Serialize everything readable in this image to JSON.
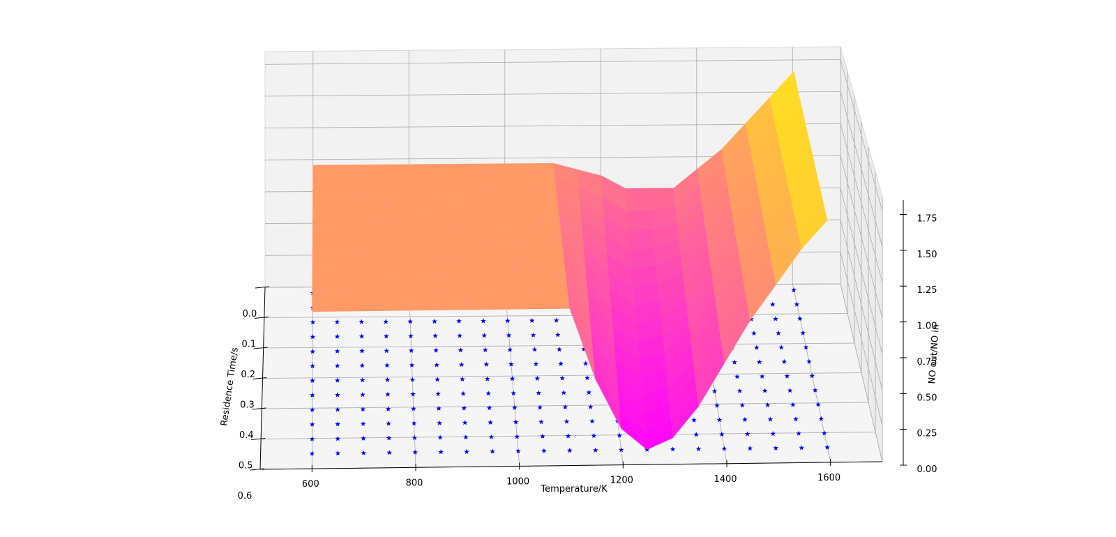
{
  "chart_data": {
    "type": "surface-3d",
    "xlabel": "Temperature/K",
    "ylabel": "Residence Time/s",
    "zlabel": "NO out/NO in",
    "x_ticks": [
      "600",
      "800",
      "1000",
      "1200",
      "1400",
      "1600"
    ],
    "y_ticks": [
      "0.0",
      "0.1",
      "0.2",
      "0.3",
      "0.4",
      "0.5",
      "0.6"
    ],
    "z_ticks": [
      "0.00",
      "0.25",
      "0.50",
      "0.75",
      "1.00",
      "1.25",
      "1.50",
      "1.75"
    ],
    "xlim": [
      500,
      1700
    ],
    "ylim": [
      0,
      0.6
    ],
    "zlim": [
      0,
      1.85
    ],
    "surface": {
      "colormap": "spring",
      "x": [
        600,
        650,
        700,
        750,
        800,
        850,
        900,
        950,
        1000,
        1050,
        1100,
        1150,
        1200,
        1250,
        1300,
        1350,
        1400,
        1450,
        1500,
        1550,
        1600
      ],
      "z_profile_short_time": [
        1.0,
        1.0,
        1.0,
        1.0,
        1.0,
        1.0,
        1.0,
        1.0,
        1.0,
        1.0,
        1.0,
        0.95,
        0.9,
        0.8,
        0.8,
        0.8,
        0.95,
        1.1,
        1.3,
        1.5,
        1.7
      ],
      "z_profile_long_time": [
        1.0,
        1.0,
        1.0,
        1.0,
        1.0,
        1.0,
        1.0,
        1.0,
        1.0,
        1.0,
        1.0,
        0.5,
        0.15,
        0.0,
        0.08,
        0.3,
        0.6,
        0.9,
        1.15,
        1.4,
        1.6
      ],
      "y_range": [
        0.02,
        0.55
      ]
    },
    "scatter": {
      "marker": "star",
      "color": "#0000ff",
      "x": [
        600,
        650,
        700,
        750,
        800,
        850,
        900,
        950,
        1000,
        1050,
        1100,
        1150,
        1200,
        1250,
        1300,
        1350,
        1400,
        1450,
        1500,
        1550,
        1600
      ],
      "y_count": 12
    }
  }
}
